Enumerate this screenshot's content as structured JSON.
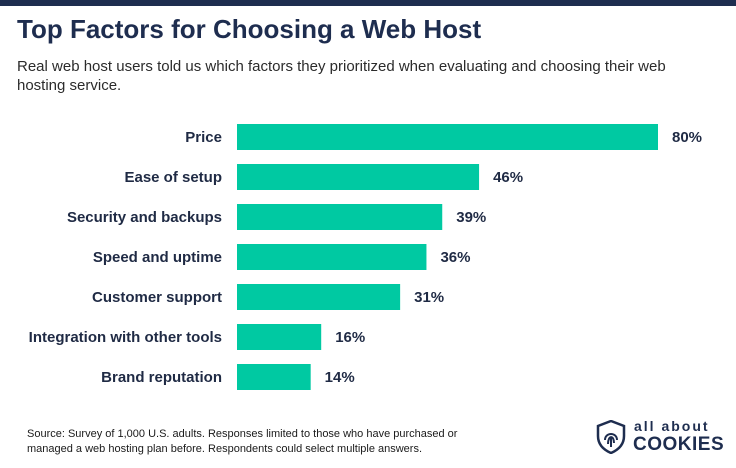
{
  "header": {
    "title": "Top Factors for Choosing a Web Host",
    "subtitle": "Real web host users told us which factors they prioritized when evaluating and choosing their web hosting service."
  },
  "chart_data": {
    "type": "bar",
    "orientation": "horizontal",
    "categories": [
      "Price",
      "Ease of setup",
      "Security and backups",
      "Speed and uptime",
      "Customer support",
      "Integration with other tools",
      "Brand reputation"
    ],
    "values": [
      80,
      46,
      39,
      36,
      31,
      16,
      14
    ],
    "value_labels": [
      "80%",
      "46%",
      "39%",
      "36%",
      "31%",
      "16%",
      "14%"
    ],
    "xlim": [
      0,
      80
    ],
    "grid": false,
    "bar_color": "#00c9a2"
  },
  "footer": {
    "source": "Source: Survey of 1,000 U.S. adults. Responses limited to those who have purchased or managed a web hosting plan before. Respondents could select multiple answers."
  },
  "logo": {
    "top_text": "all about",
    "bottom_text": "COOKIES",
    "icon": "fingerprint-shield-icon",
    "color": "#1e2d4f"
  }
}
